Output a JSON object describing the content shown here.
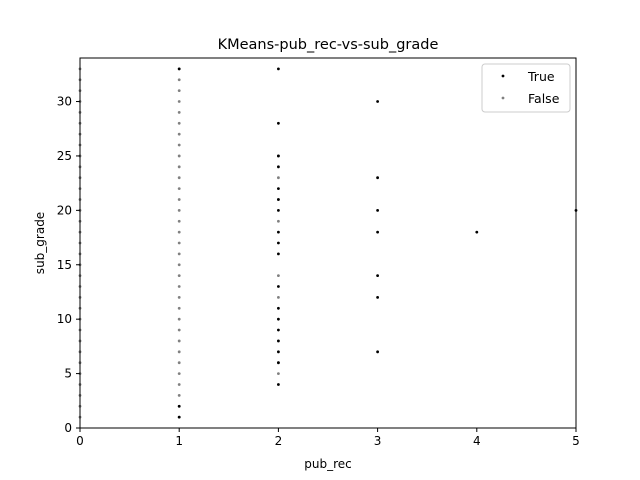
{
  "chart_data": {
    "type": "scatter",
    "title": "KMeans-pub_rec-vs-sub_grade",
    "xlabel": "pub_rec",
    "ylabel": "sub_grade",
    "xlim": [
      0,
      5
    ],
    "ylim": [
      0,
      34
    ],
    "xticks": [
      0,
      1,
      2,
      3,
      4,
      5
    ],
    "yticks": [
      0,
      5,
      10,
      15,
      20,
      25,
      30
    ],
    "grid": false,
    "legend_position": "top-right",
    "series": [
      {
        "name": "True",
        "color": "#000000",
        "points": [
          [
            1,
            1
          ],
          [
            1,
            2
          ],
          [
            1,
            33
          ],
          [
            2,
            4
          ],
          [
            2,
            6
          ],
          [
            2,
            7
          ],
          [
            2,
            8
          ],
          [
            2,
            9
          ],
          [
            2,
            10
          ],
          [
            2,
            11
          ],
          [
            2,
            13
          ],
          [
            2,
            16
          ],
          [
            2,
            17
          ],
          [
            2,
            18
          ],
          [
            2,
            20
          ],
          [
            2,
            21
          ],
          [
            2,
            22
          ],
          [
            2,
            24
          ],
          [
            2,
            25
          ],
          [
            2,
            28
          ],
          [
            2,
            33
          ],
          [
            3,
            7
          ],
          [
            3,
            12
          ],
          [
            3,
            14
          ],
          [
            3,
            18
          ],
          [
            3,
            20
          ],
          [
            3,
            23
          ],
          [
            3,
            30
          ],
          [
            4,
            18
          ],
          [
            5,
            20
          ]
        ]
      },
      {
        "name": "False",
        "color": "#808080",
        "points": [
          [
            0,
            1
          ],
          [
            0,
            2
          ],
          [
            0,
            3
          ],
          [
            0,
            4
          ],
          [
            0,
            5
          ],
          [
            0,
            6
          ],
          [
            0,
            7
          ],
          [
            0,
            8
          ],
          [
            0,
            9
          ],
          [
            0,
            10
          ],
          [
            0,
            11
          ],
          [
            0,
            12
          ],
          [
            0,
            13
          ],
          [
            0,
            14
          ],
          [
            0,
            15
          ],
          [
            0,
            16
          ],
          [
            0,
            17
          ],
          [
            0,
            18
          ],
          [
            0,
            19
          ],
          [
            0,
            20
          ],
          [
            0,
            21
          ],
          [
            0,
            22
          ],
          [
            0,
            23
          ],
          [
            0,
            24
          ],
          [
            0,
            25
          ],
          [
            0,
            26
          ],
          [
            0,
            27
          ],
          [
            0,
            28
          ],
          [
            0,
            29
          ],
          [
            0,
            30
          ],
          [
            0,
            31
          ],
          [
            0,
            32
          ],
          [
            0,
            33
          ],
          [
            1,
            1
          ],
          [
            1,
            2
          ],
          [
            1,
            3
          ],
          [
            1,
            4
          ],
          [
            1,
            5
          ],
          [
            1,
            6
          ],
          [
            1,
            7
          ],
          [
            1,
            8
          ],
          [
            1,
            9
          ],
          [
            1,
            10
          ],
          [
            1,
            11
          ],
          [
            1,
            12
          ],
          [
            1,
            13
          ],
          [
            1,
            14
          ],
          [
            1,
            15
          ],
          [
            1,
            16
          ],
          [
            1,
            17
          ],
          [
            1,
            18
          ],
          [
            1,
            19
          ],
          [
            1,
            20
          ],
          [
            1,
            21
          ],
          [
            1,
            22
          ],
          [
            1,
            23
          ],
          [
            1,
            24
          ],
          [
            1,
            25
          ],
          [
            1,
            26
          ],
          [
            1,
            27
          ],
          [
            1,
            28
          ],
          [
            1,
            29
          ],
          [
            1,
            30
          ],
          [
            1,
            31
          ],
          [
            1,
            32
          ],
          [
            1,
            33
          ],
          [
            2,
            5
          ],
          [
            2,
            6
          ],
          [
            2,
            12
          ],
          [
            2,
            14
          ],
          [
            2,
            19
          ],
          [
            2,
            21
          ],
          [
            2,
            23
          ],
          [
            2,
            25
          ]
        ]
      }
    ]
  }
}
